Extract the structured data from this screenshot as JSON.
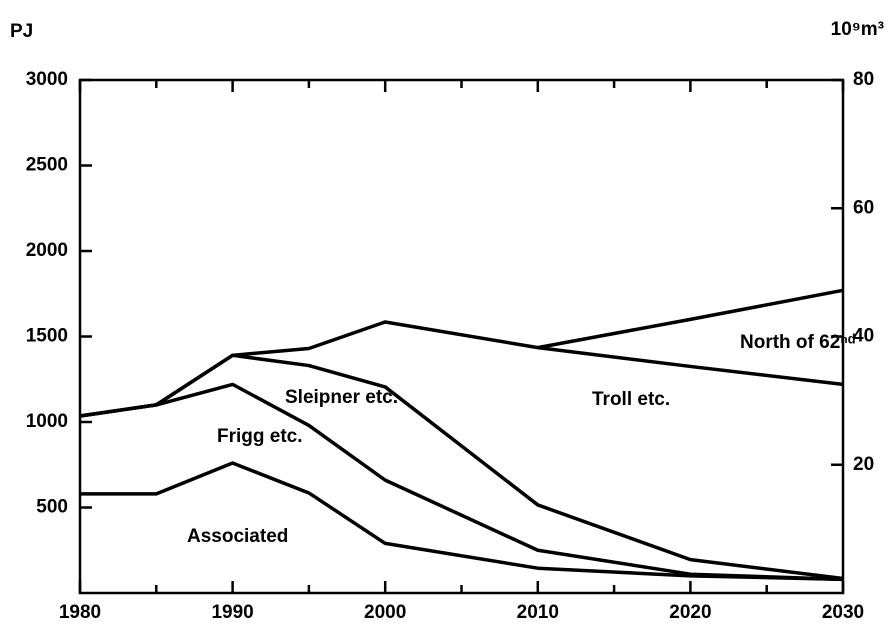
{
  "chart_data": {
    "type": "stacked_line",
    "ylabel": "PJ",
    "y2label": "10⁹m³",
    "x": [
      1980,
      1985,
      1990,
      1995,
      2000,
      2010,
      2020,
      2030
    ],
    "xlim": [
      1980,
      2030
    ],
    "xticks": [
      1980,
      1990,
      2000,
      2010,
      2020,
      2030
    ],
    "ylim": [
      0,
      3000
    ],
    "yticks": [
      500,
      1000,
      1500,
      2000,
      2500,
      3000
    ],
    "y2lim": [
      0,
      80
    ],
    "y2ticks": [
      20,
      40,
      60,
      80
    ],
    "color": "#000000",
    "series": [
      {
        "name": "Associated",
        "values": [
          580,
          580,
          760,
          585,
          290,
          145,
          100,
          80
        ]
      },
      {
        "name": "Frigg etc.",
        "values": [
          455,
          520,
          460,
          395,
          370,
          105,
          10,
          0
        ]
      },
      {
        "name": "Sleipner etc.",
        "values": [
          0,
          0,
          170,
          350,
          545,
          265,
          85,
          5
        ]
      },
      {
        "name": "Troll etc.",
        "values": [
          0,
          0,
          0,
          100,
          380,
          920,
          1130,
          1135
        ]
      },
      {
        "name": "North of 62ⁿᵈ",
        "values": [
          null,
          null,
          null,
          null,
          null,
          0,
          275,
          550
        ]
      }
    ]
  }
}
